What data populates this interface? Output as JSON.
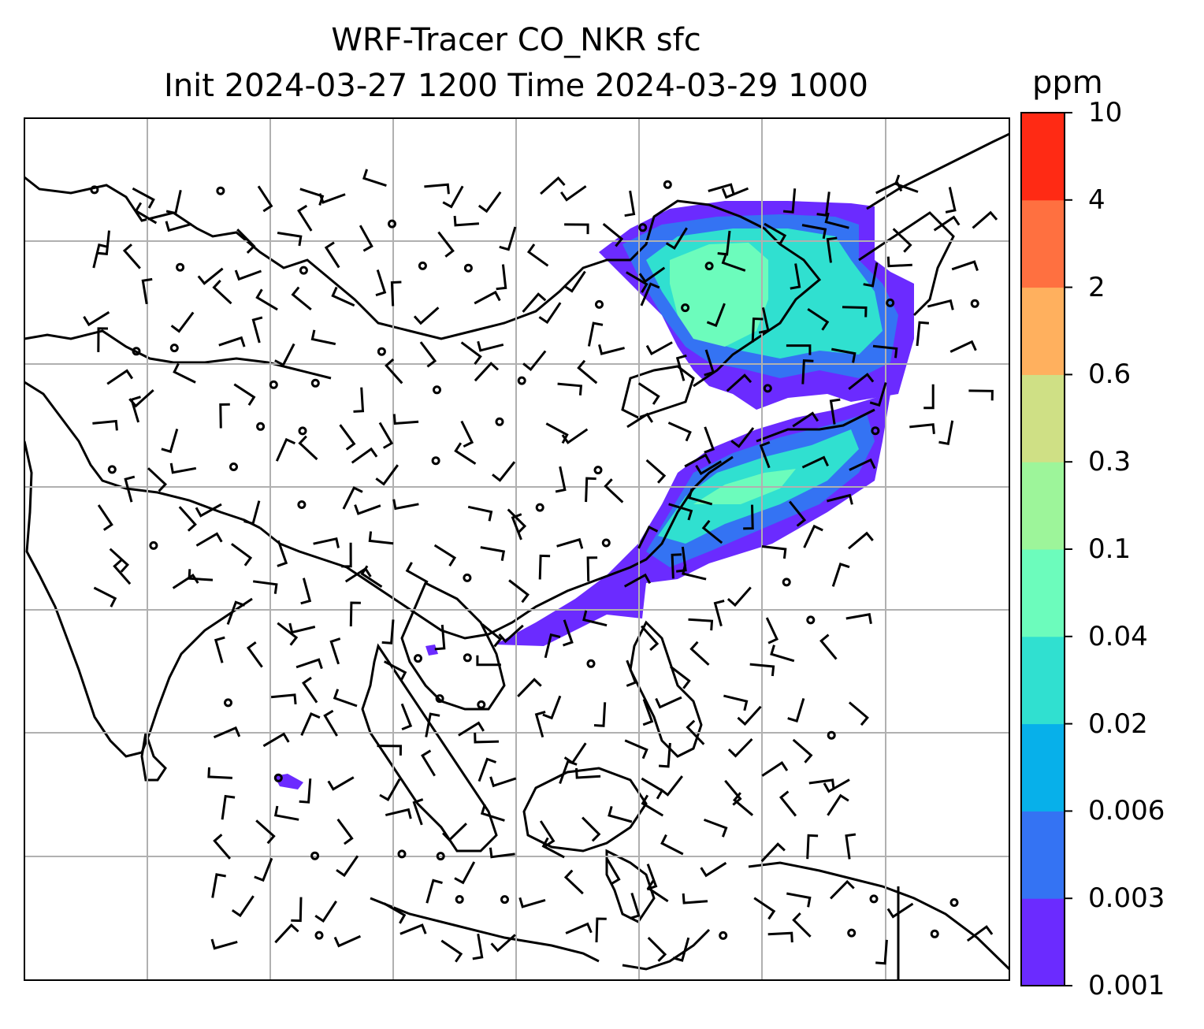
{
  "title": {
    "line1": "WRF-Tracer CO_NKR sfc",
    "line2": "Init 2024-03-27 1200 Time 2024-03-29 1000"
  },
  "colorbar": {
    "units": "ppm",
    "levels": [
      "0.001",
      "0.003",
      "0.006",
      "0.02",
      "0.04",
      "0.1",
      "0.3",
      "0.6",
      "2",
      "4",
      "10"
    ],
    "colors": [
      "#6b2bff",
      "#3473f3",
      "#07b0ea",
      "#30e0d0",
      "#6cfcbc",
      "#9df59a",
      "#cfe085",
      "#ffb05e",
      "#ff7040",
      "#ff2a14"
    ]
  },
  "map": {
    "field": "CO_NKR tracer concentration",
    "overlay": "wind barbs",
    "gridlines": true,
    "coastlines": true
  }
}
